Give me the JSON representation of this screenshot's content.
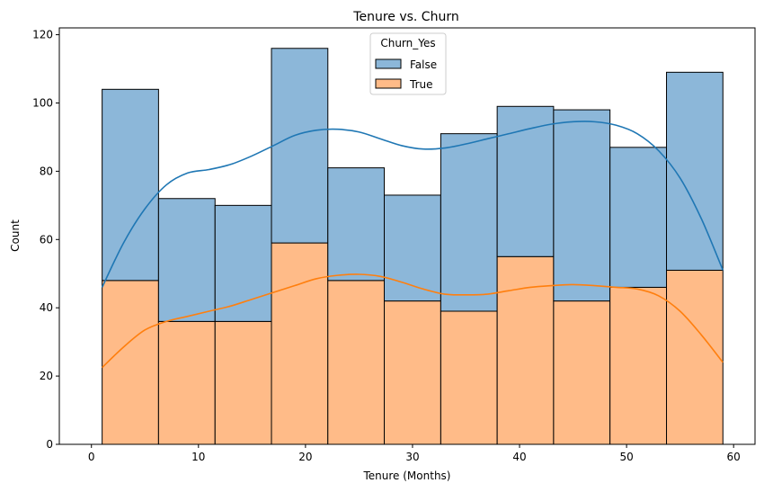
{
  "chart_data": {
    "type": "bar",
    "subtype": "stacked histogram with kde",
    "title": "Tenure vs. Churn",
    "xlabel": "Tenure (Months)",
    "ylabel": "Count",
    "xlim": [
      -3,
      62
    ],
    "ylim": [
      0,
      122
    ],
    "xticks": [
      0,
      10,
      20,
      30,
      40,
      50,
      60
    ],
    "yticks": [
      0,
      20,
      40,
      60,
      80,
      100,
      120
    ],
    "bin_edges": [
      1,
      6.27,
      11.55,
      16.82,
      22.09,
      27.36,
      32.64,
      37.91,
      43.18,
      48.45,
      53.73,
      59
    ],
    "stack_totals": [
      104,
      72,
      70,
      116,
      81,
      73,
      91,
      99,
      98,
      87,
      109
    ],
    "legend": {
      "title": "Churn_Yes",
      "position": "top-center"
    },
    "grid": false,
    "series": [
      {
        "name": "True",
        "color": "#ffbb88",
        "line_color": "#ff7f0e",
        "values": [
          48,
          36,
          36,
          59,
          48,
          42,
          39,
          55,
          42,
          46,
          51
        ],
        "kde_x": [
          1,
          3,
          5,
          7,
          9,
          11,
          13,
          15,
          17,
          19,
          21,
          23,
          25,
          27,
          29,
          31,
          33,
          35,
          37,
          39,
          41,
          43,
          45,
          47,
          49,
          51,
          53,
          55,
          57,
          59
        ],
        "kde_y": [
          22.5,
          28.5,
          33.5,
          36,
          37.5,
          39,
          40.5,
          42.5,
          44.5,
          46.5,
          48.5,
          49.5,
          49.8,
          49.2,
          47.5,
          45.5,
          44,
          43.8,
          44,
          45,
          46,
          46.5,
          46.8,
          46.5,
          46,
          45.5,
          43.5,
          39,
          32,
          24
        ]
      },
      {
        "name": "False",
        "color": "#8cb7d9",
        "line_color": "#1f77b4",
        "values": [
          56,
          36,
          34,
          57,
          33,
          31,
          52,
          44,
          56,
          41,
          58
        ],
        "kde_x": [
          1,
          3,
          5,
          7,
          9,
          11,
          13,
          15,
          17,
          19,
          21,
          23,
          25,
          27,
          29,
          31,
          33,
          35,
          37,
          39,
          41,
          43,
          45,
          47,
          49,
          51,
          53,
          55,
          57,
          59
        ],
        "kde_y": [
          46,
          59,
          69,
          76,
          79.5,
          80.5,
          82,
          84.5,
          87.5,
          90.5,
          92,
          92.3,
          91.5,
          89.5,
          87.5,
          86.5,
          86.8,
          88,
          89.5,
          91,
          92.5,
          93.8,
          94.5,
          94.5,
          93.5,
          91,
          86,
          78,
          66,
          51
        ]
      }
    ]
  }
}
